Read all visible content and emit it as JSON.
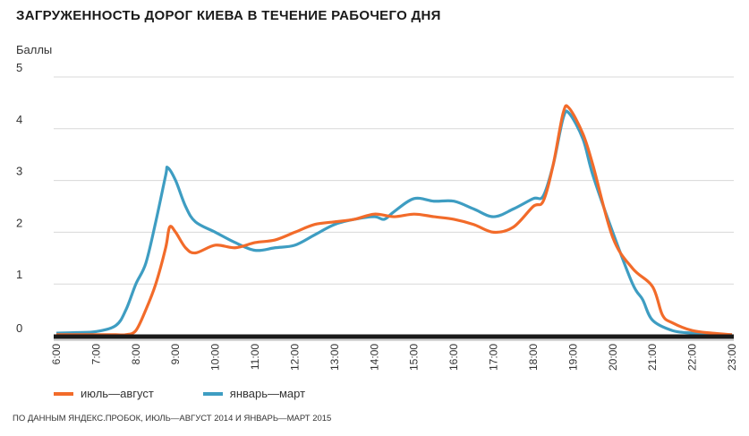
{
  "chart_data": {
    "type": "line",
    "title": "ЗАГРУЖЕННОСТЬ ДОРОГ КИЕВА В ТЕЧЕНИЕ РАБОЧЕГО ДНЯ",
    "ylabel": "Баллы",
    "xlabel": "",
    "ylim": [
      0,
      5
    ],
    "xlim": [
      6,
      23
    ],
    "yticks": [
      "0",
      "1",
      "2",
      "3",
      "4",
      "5"
    ],
    "xticks": [
      "6:00",
      "7:00",
      "8:00",
      "9:00",
      "10:00",
      "11:00",
      "12:00",
      "13:00",
      "14:00",
      "15:00",
      "16:00",
      "17:00",
      "18:00",
      "19:00",
      "20:00",
      "21:00",
      "22:00",
      "23:00"
    ],
    "grid": true,
    "legend_position": "bottom-left",
    "series": [
      {
        "name": "июль—август",
        "color": "#f26b2a",
        "x": [
          6,
          6.5,
          7,
          7.5,
          7.75,
          8,
          8.25,
          8.5,
          8.75,
          8.85,
          9,
          9.25,
          9.5,
          10,
          10.5,
          11,
          11.5,
          12,
          12.5,
          13,
          13.5,
          14,
          14.5,
          15,
          15.5,
          16,
          16.5,
          17,
          17.5,
          18,
          18.25,
          18.5,
          18.75,
          18.9,
          19.25,
          19.5,
          20,
          20.5,
          21,
          21.25,
          21.5,
          22,
          22.5,
          23
        ],
        "y": [
          0.02,
          0.02,
          0.02,
          0.02,
          0.02,
          0.1,
          0.5,
          1.0,
          1.7,
          2.1,
          2.0,
          1.7,
          1.6,
          1.75,
          1.7,
          1.8,
          1.85,
          2.0,
          2.15,
          2.2,
          2.25,
          2.35,
          2.3,
          2.35,
          2.3,
          2.25,
          2.15,
          2.0,
          2.1,
          2.5,
          2.6,
          3.3,
          4.3,
          4.4,
          3.9,
          3.3,
          1.9,
          1.3,
          0.95,
          0.4,
          0.25,
          0.1,
          0.05,
          0.02
        ]
      },
      {
        "name": "январь—март",
        "color": "#3e9dc2",
        "x": [
          6,
          6.5,
          7,
          7.5,
          7.75,
          8,
          8.25,
          8.5,
          8.75,
          8.8,
          9,
          9.25,
          9.5,
          10,
          10.5,
          11,
          11.5,
          12,
          12.5,
          13,
          13.5,
          14,
          14.25,
          14.5,
          15,
          15.5,
          16,
          16.5,
          17,
          17.5,
          18,
          18.25,
          18.5,
          18.75,
          18.9,
          19.25,
          19.5,
          20,
          20.5,
          20.75,
          21,
          21.5,
          22,
          22.5,
          23
        ],
        "y": [
          0.05,
          0.06,
          0.08,
          0.2,
          0.5,
          1.0,
          1.4,
          2.2,
          3.1,
          3.25,
          3.0,
          2.5,
          2.2,
          2.0,
          1.8,
          1.65,
          1.7,
          1.75,
          1.95,
          2.15,
          2.25,
          2.3,
          2.25,
          2.4,
          2.65,
          2.6,
          2.6,
          2.45,
          2.3,
          2.45,
          2.65,
          2.7,
          3.3,
          4.2,
          4.3,
          3.8,
          3.1,
          2.0,
          1.0,
          0.7,
          0.3,
          0.1,
          0.05,
          0.02,
          0.02
        ]
      }
    ],
    "source": "ПО ДАННЫМ ЯНДЕКС.ПРОБОК, ИЮЛЬ—АВГУСТ 2014 И ЯНВАРЬ—МАРТ 2015"
  }
}
